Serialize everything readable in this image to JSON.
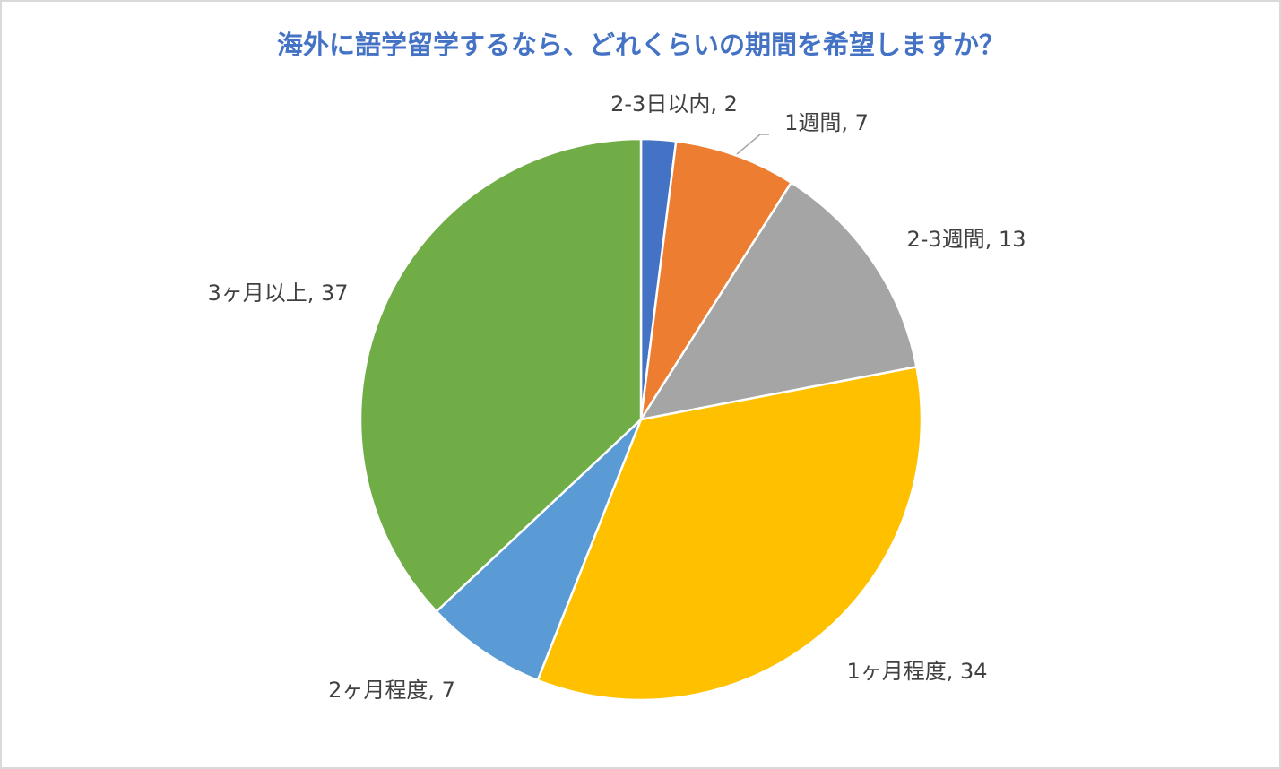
{
  "chart_data": {
    "type": "pie",
    "title": "海外に語学留学するなら、どれくらいの期間を希望しますか？",
    "values": [
      2,
      7,
      13,
      34,
      7,
      37
    ],
    "value_labels": [
      "2-3日以内, 2",
      "1週間, 7",
      "2-3週間, 13",
      "1ヶ月程度, 34",
      "2ヶ月程度, 7",
      "3ヶ月以上, 37"
    ],
    "colors": [
      "#4472c4",
      "#ed7d31",
      "#a5a5a5",
      "#ffc000",
      "#5b9bd5",
      "#70ad47"
    ]
  }
}
